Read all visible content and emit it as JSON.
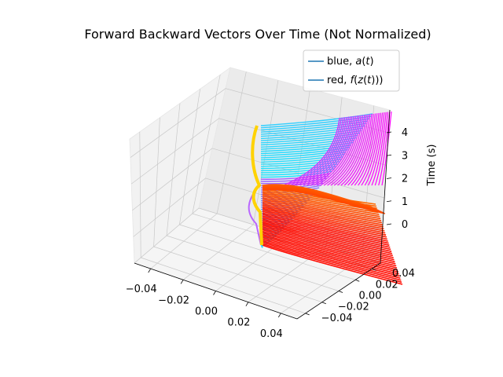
{
  "chart_data": {
    "type": "line",
    "projection": "3d",
    "title": "Forward Backward Vectors Over Time (Not Normalized)",
    "zlabel": "Time (s)",
    "xlabel": "",
    "ylabel": "",
    "x_ticks": [
      "−0.04",
      "−0.02",
      "0.00",
      "0.02",
      "0.04"
    ],
    "y_ticks": [
      "−0.04",
      "−0.02",
      "0.00",
      "0.02",
      "0.04"
    ],
    "z_ticks": [
      "0",
      "1",
      "2",
      "3",
      "4"
    ],
    "xlim": [
      -0.05,
      0.05
    ],
    "ylim": [
      -0.05,
      0.05
    ],
    "zlim": [
      0,
      4.7
    ],
    "grid": true,
    "legend": {
      "placement": "top-right",
      "entries": [
        {
          "label": "blue, a(t)",
          "color": "#1f77b4"
        },
        {
          "label": "red, f(z(t)))",
          "color": "#1f77b4"
        }
      ]
    },
    "series": [
      {
        "name": "blue, a(t)",
        "colormap": "cool",
        "description_values": {
          "t_start": 0,
          "t_end": 4.6,
          "x_end_start": 0.0,
          "x_end_final": 0.055
        }
      },
      {
        "name": "red, f(z(t)))",
        "colormap": "autumn",
        "description_values": {
          "t_start": 0,
          "t_end": 4.6
        }
      }
    ]
  }
}
